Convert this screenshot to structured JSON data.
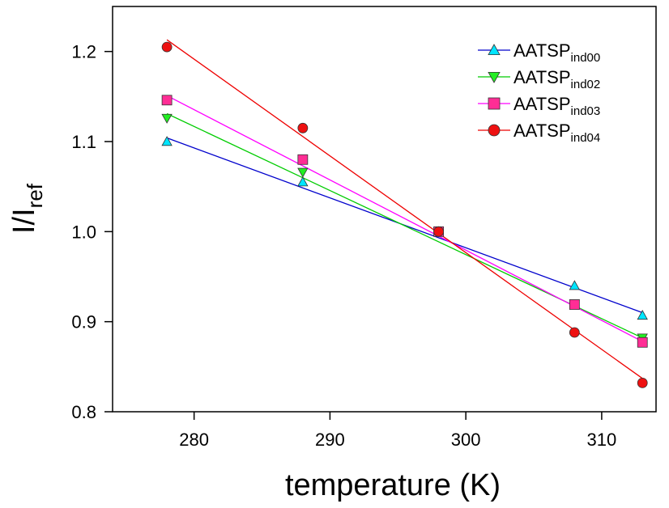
{
  "chart_data": {
    "type": "scatter",
    "xlabel": "temperature (K)",
    "ylabel": {
      "main": "I/I",
      "sub": "ref"
    },
    "xlim": [
      274,
      314
    ],
    "ylim": [
      0.8,
      1.25
    ],
    "xticks": [
      280,
      290,
      300,
      310
    ],
    "yticks": [
      0.8,
      0.9,
      1.0,
      1.1,
      1.2
    ],
    "xtick_labels": [
      "280",
      "290",
      "300",
      "310"
    ],
    "ytick_labels": [
      "0.8",
      "0.9",
      "1.0",
      "1.1",
      "1.2"
    ],
    "grid": false,
    "legend_position": "top-right",
    "series": [
      {
        "name": "AATSP",
        "name_sub": "ind00",
        "marker": "triangle-up",
        "marker_color": "#00e5ff",
        "line_color": "#0000cc",
        "points": [
          [
            278,
            1.1
          ],
          [
            288,
            1.055
          ],
          [
            298,
            1.0
          ],
          [
            308,
            0.94
          ],
          [
            313,
            0.907
          ]
        ],
        "fit": [
          [
            278,
            1.104
          ],
          [
            313,
            0.91
          ]
        ]
      },
      {
        "name": "AATSP",
        "name_sub": "ind02",
        "marker": "triangle-down",
        "marker_color": "#22ee22",
        "line_color": "#00cc00",
        "points": [
          [
            278,
            1.126
          ],
          [
            288,
            1.066
          ],
          [
            298,
            1.0
          ],
          [
            308,
            0.92
          ],
          [
            313,
            0.882
          ]
        ],
        "fit": [
          [
            278,
            1.131
          ],
          [
            313,
            0.882
          ]
        ]
      },
      {
        "name": "AATSP",
        "name_sub": "ind03",
        "marker": "square",
        "marker_color": "#ff2d95",
        "line_color": "#ff00ff",
        "points": [
          [
            278,
            1.146
          ],
          [
            288,
            1.08
          ],
          [
            298,
            1.0
          ],
          [
            308,
            0.919
          ],
          [
            313,
            0.877
          ]
        ],
        "fit": [
          [
            278,
            1.151
          ],
          [
            313,
            0.878
          ]
        ]
      },
      {
        "name": "AATSP",
        "name_sub": "ind04",
        "marker": "circle",
        "marker_color": "#ee1111",
        "line_color": "#ee0000",
        "points": [
          [
            278,
            1.205
          ],
          [
            288,
            1.115
          ],
          [
            298,
            1.0
          ],
          [
            308,
            0.888
          ],
          [
            313,
            0.832
          ]
        ],
        "fit": [
          [
            278,
            1.213
          ],
          [
            313,
            0.837
          ]
        ]
      }
    ]
  }
}
